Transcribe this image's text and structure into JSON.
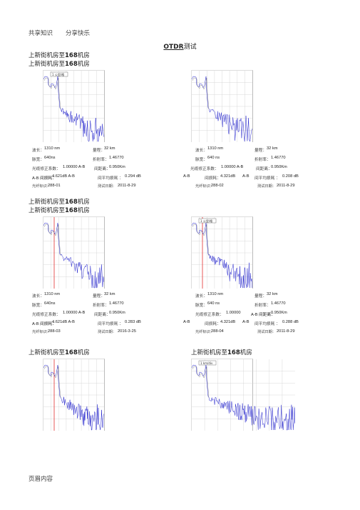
{
  "header": {
    "left": "共享知识",
    "right": "分享快乐"
  },
  "footer": {
    "text": "页眉内容"
  },
  "title": {
    "a": "OTDR",
    "b": "测试"
  },
  "routes": {
    "r1a": {
      "pre": "上新街机房至",
      "num": "168",
      "post": "机房"
    },
    "r1b": {
      "pre": "上新街机房至",
      "num": "168",
      "post": "机房"
    },
    "r2a": {
      "pre": "上新街机房至",
      "num": "168",
      "post": "机房"
    },
    "r2b": {
      "pre": "上新街机房至",
      "num": "168",
      "post": "机房"
    },
    "r3a": {
      "pre": "上新街机房至",
      "num": "168",
      "post": "机房"
    },
    "r3b": {
      "pre": "上新街机房至",
      "num": "168",
      "post": "机房"
    }
  },
  "chart_labels": {
    "marker_box": "1 公里/格",
    "marker_box2": "1 km/div"
  },
  "tests": [
    {
      "wavelength_label": "波长：",
      "wavelength": "1310 nm",
      "range_label": "量程：",
      "range": "32 km",
      "pulse_label": "脉宽：",
      "pulse": "640ns",
      "ior_label": "折射率：",
      "ior": "1.46770",
      "coef_label": "光缆修正系数：",
      "coef": "1.00000 A-B",
      "dist_label": "间距离：",
      "dist": "0.950Km",
      "ab_label": "A-B 间损耗：",
      "ab_loss": "4.621dB A-B",
      "avg_label": "间平均损耗 ：",
      "avg_loss": "0.294 dB",
      "fiber_label": "光纤标识：",
      "fiber": "288-01",
      "date_label": "测试日期：",
      "date": "2011-8-29"
    },
    {
      "wavelength_label": "波长：",
      "wavelength": "1310 nm",
      "range_label": "量程：",
      "range": "32 km",
      "pulse_label": "脉宽：",
      "pulse": "640 ns",
      "ior_label": "折射率：",
      "ior": "1.46770",
      "coef_label": "光缆修正系数：",
      "coef": "1.00000 A-B",
      "dist_label": "间距离：",
      "dist": "0.950Km",
      "ab_pre": "A-B",
      "ab_label": "间损耗：",
      "ab_loss": "4.321dB",
      "ab_post": "A-B",
      "avg_label": "间平均损耗 ：",
      "avg_loss": "0.208 dB",
      "fiber_label": "光纤标识：",
      "fiber": "288-02",
      "date_label": "测试日期：",
      "date": "2011-8-29"
    },
    {
      "wavelength_label": "波长：",
      "wavelength": "1310 nm",
      "range_label": "量程：",
      "range": "32 km",
      "pulse_label": "脉宽：",
      "pulse": "640ns",
      "ior_label": "折射率：",
      "ior": "1.46770",
      "coef_label": "光缆修正系数：",
      "coef": "1.00000 A-B",
      "dist_label": "间距离：",
      "dist": "0.950Km",
      "ab_label": "A-B 间损耗：",
      "ab_loss": "4.621dB A-B",
      "avg_label": "间平均损耗 ：",
      "avg_loss": "0.283 dB",
      "fiber_label": "光纤标识：",
      "fiber": "288-03",
      "date_label": "测试日期：",
      "date": "2016-3-25"
    },
    {
      "wavelength_label": "波长：",
      "wavelength": "1310 nm",
      "range_label": "量程：",
      "range": "32 km",
      "pulse_label": "脉宽：",
      "pulse": "640 ns",
      "ior_label": "折射率：",
      "ior": "1.46770",
      "coef_label": "光缆修正系数：",
      "coef": "1.00000",
      "dist_label": "A-B 间距离：",
      "dist": "0.950Km",
      "ab_pre": "A-B",
      "ab_label": "间损耗：",
      "ab_loss": "4.321dB",
      "ab_post": "A-B",
      "avg_label": "间平均损耗 ：",
      "avg_loss": "0.288 dB",
      "fiber_label": "光纤标识：",
      "fiber": "288-04",
      "date_label": "测试日期：",
      "date": "2011-8-29"
    }
  ],
  "colors": {
    "trace": "#2222cc",
    "marker": "#e23030",
    "grid": "#cfcfcf"
  }
}
